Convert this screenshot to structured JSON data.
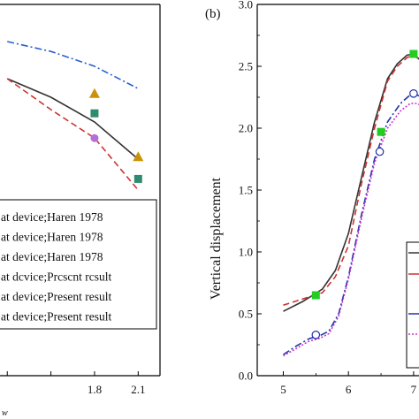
{
  "chart_data": [
    {
      "panel": "a",
      "type": "line",
      "xlabel": "",
      "ylabel": "",
      "xticks": [
        "1.8",
        "2.1"
      ],
      "x_axis_fragment": "w",
      "legend": {
        "placement": "bottom-left",
        "entries": [
          "at device;Haren 1978",
          "at device;Haren 1978",
          "at device;Haren 1978",
          "at dcvice;Prcscnt rcsult",
          "at device;Present result",
          "at device;Present result"
        ]
      },
      "series": [
        {
          "style": "dash-dot",
          "color": "#2a5fd0",
          "x": [
            1.2,
            1.5,
            1.8,
            2.1
          ],
          "y": [
            2.7,
            2.62,
            2.5,
            2.32
          ]
        },
        {
          "style": "solid",
          "color": "#333333",
          "x": [
            1.2,
            1.5,
            1.8,
            2.1
          ],
          "y": [
            2.4,
            2.25,
            2.05,
            1.75
          ]
        },
        {
          "style": "dashed",
          "color": "#cc3333",
          "x": [
            1.2,
            1.5,
            1.8,
            2.1
          ],
          "y": [
            2.4,
            2.15,
            1.92,
            1.5
          ]
        },
        {
          "style": "triangle",
          "color": "#c8920a",
          "x": [
            1.8,
            2.1
          ],
          "y": [
            2.28,
            1.77
          ]
        },
        {
          "style": "square",
          "color": "#2e8b6f",
          "x": [
            1.8,
            2.1
          ],
          "y": [
            2.12,
            1.59
          ]
        },
        {
          "style": "circle",
          "color": "#b56fd8",
          "x": [
            1.8,
            2.1
          ],
          "y": [
            1.92,
            1.38
          ]
        }
      ],
      "xlim": [
        1.15,
        2.25
      ],
      "ylim": [
        0,
        3.0
      ]
    },
    {
      "panel": "b",
      "panel_label": "(b)",
      "type": "line",
      "ylabel": "Vertical displacement",
      "xlabel": "",
      "xticks": [
        "5",
        "6",
        "7"
      ],
      "yticks": [
        "0.0",
        "0.5",
        "1.0",
        "1.5",
        "2.0",
        "2.5",
        "3.0"
      ],
      "xlim": [
        4.6,
        7.3
      ],
      "ylim": [
        0,
        3.0
      ],
      "series": [
        {
          "style": "solid",
          "color": "#333333",
          "x": [
            5.0,
            5.3,
            5.6,
            5.8,
            6.0,
            6.2,
            6.4,
            6.6,
            6.75,
            6.9,
            7.0,
            7.1,
            7.3
          ],
          "y": [
            0.52,
            0.6,
            0.7,
            0.85,
            1.15,
            1.6,
            2.05,
            2.4,
            2.52,
            2.59,
            2.6,
            2.55,
            2.45
          ]
        },
        {
          "style": "dashed",
          "color": "#cc3333",
          "x": [
            5.0,
            5.3,
            5.6,
            5.8,
            6.0,
            6.2,
            6.4,
            6.6,
            6.75,
            6.9,
            7.0,
            7.1,
            7.3
          ],
          "y": [
            0.57,
            0.62,
            0.67,
            0.8,
            1.05,
            1.55,
            2.0,
            2.38,
            2.5,
            2.57,
            2.59,
            2.55,
            2.42
          ]
        },
        {
          "style": "dash-dot",
          "color": "#2233aa",
          "x": [
            5.0,
            5.2,
            5.4,
            5.55,
            5.7,
            5.85,
            6.0,
            6.2,
            6.4,
            6.6,
            6.8,
            6.95,
            7.05,
            7.3
          ],
          "y": [
            0.17,
            0.24,
            0.3,
            0.32,
            0.36,
            0.5,
            0.8,
            1.3,
            1.75,
            2.05,
            2.2,
            2.27,
            2.27,
            2.2
          ]
        },
        {
          "style": "dotted",
          "color": "#cc33cc",
          "x": [
            5.0,
            5.2,
            5.4,
            5.55,
            5.7,
            5.85,
            6.0,
            6.2,
            6.4,
            6.6,
            6.8,
            6.95,
            7.05,
            7.3
          ],
          "y": [
            0.16,
            0.22,
            0.28,
            0.3,
            0.34,
            0.48,
            0.78,
            1.27,
            1.72,
            2.0,
            2.14,
            2.2,
            2.2,
            2.13
          ]
        },
        {
          "style": "square",
          "color": "#22cc22",
          "x": [
            5.5,
            6.5,
            7.0
          ],
          "y": [
            0.65,
            1.97,
            2.6
          ]
        },
        {
          "style": "circle",
          "color": "#2233aa",
          "x": [
            5.5,
            6.48,
            7.0
          ],
          "y": [
            0.33,
            1.81,
            2.28
          ]
        }
      ],
      "legend": {
        "placement": "bottom-right",
        "entries": [
          "",
          "",
          "",
          ""
        ]
      }
    }
  ]
}
